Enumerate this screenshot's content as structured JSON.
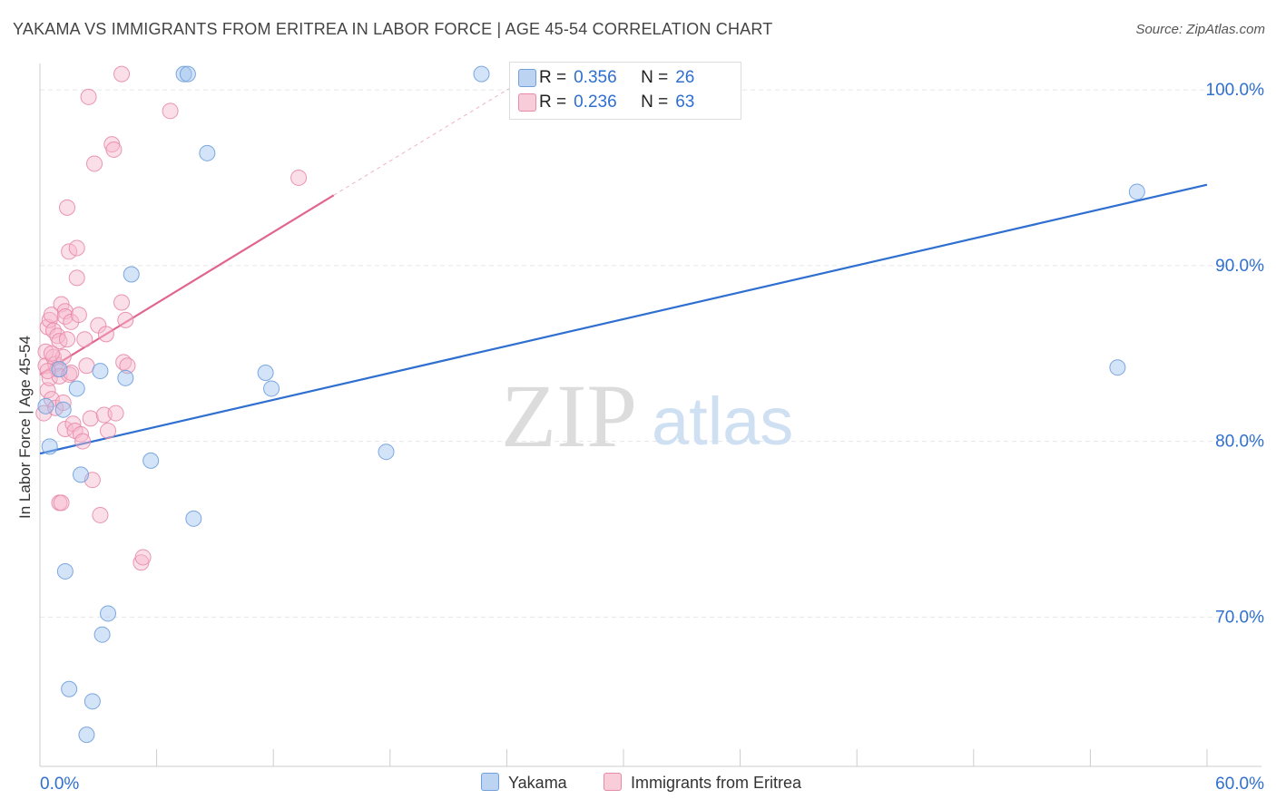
{
  "title": "YAKAMA VS IMMIGRANTS FROM ERITREA IN LABOR FORCE | AGE 45-54 CORRELATION CHART",
  "source": "Source: ZipAtlas.com",
  "watermark": {
    "zip": "ZIP",
    "atlas": "atlas"
  },
  "legend": {
    "yakama": {
      "r_label": "R =",
      "r_value": "0.356",
      "n_label": "N =",
      "n_value": "26"
    },
    "eritrea": {
      "r_label": "R =",
      "r_value": "0.236",
      "n_label": "N =",
      "n_value": "63"
    }
  },
  "chart_data": {
    "type": "scatter",
    "title": "YAKAMA VS IMMIGRANTS FROM ERITREA IN LABOR FORCE | AGE 45-54 CORRELATION CHART",
    "xlabel": "",
    "ylabel": "In Labor Force | Age 45-54",
    "xlim": [
      0,
      60
    ],
    "ylim": [
      61.5,
      101.5
    ],
    "x_tick_labels": [
      "0.0%",
      "60.0%"
    ],
    "y_ticks": [
      {
        "value": 70,
        "label": "70.0%"
      },
      {
        "value": 80,
        "label": "80.0%"
      },
      {
        "value": 90,
        "label": "90.0%"
      },
      {
        "value": 100,
        "label": "100.0%"
      }
    ],
    "grid": true,
    "series": [
      {
        "name": "Yakama",
        "color": "#9ec2ef",
        "edge": "#6f9fdc",
        "line_color": "#2e6fd0",
        "trend": {
          "x0": 0,
          "y0": 79.3,
          "x1": 60,
          "y1": 94.6
        },
        "points": [
          {
            "x": 0.3,
            "y": 82.0
          },
          {
            "x": 0.5,
            "y": 79.7
          },
          {
            "x": 1.0,
            "y": 84.1
          },
          {
            "x": 1.2,
            "y": 81.8
          },
          {
            "x": 1.9,
            "y": 83.0
          },
          {
            "x": 2.1,
            "y": 78.1
          },
          {
            "x": 1.3,
            "y": 72.6
          },
          {
            "x": 1.5,
            "y": 65.9
          },
          {
            "x": 2.4,
            "y": 63.3
          },
          {
            "x": 2.7,
            "y": 65.2
          },
          {
            "x": 3.2,
            "y": 69.0
          },
          {
            "x": 3.5,
            "y": 70.2
          },
          {
            "x": 3.1,
            "y": 84.0
          },
          {
            "x": 4.4,
            "y": 83.6
          },
          {
            "x": 4.7,
            "y": 89.5
          },
          {
            "x": 5.7,
            "y": 78.9
          },
          {
            "x": 7.4,
            "y": 100.9
          },
          {
            "x": 7.6,
            "y": 100.9
          },
          {
            "x": 7.9,
            "y": 75.6
          },
          {
            "x": 8.6,
            "y": 96.4
          },
          {
            "x": 11.6,
            "y": 83.9
          },
          {
            "x": 11.9,
            "y": 83.0
          },
          {
            "x": 17.8,
            "y": 79.4
          },
          {
            "x": 22.7,
            "y": 100.9
          },
          {
            "x": 55.4,
            "y": 84.2
          },
          {
            "x": 56.4,
            "y": 94.2
          }
        ]
      },
      {
        "name": "Immigrants from Eritrea",
        "color": "#f6b9cc",
        "edge": "#e88aa8",
        "line_color": "#e06690",
        "trend": {
          "x0": 0,
          "y0": 83.8,
          "x1": 15.1,
          "y1": 94.0
        },
        "trend_extension": {
          "x0": 15.1,
          "y0": 94.0,
          "x1": 25.5,
          "y1": 101.0
        },
        "points": [
          {
            "x": 0.2,
            "y": 81.6
          },
          {
            "x": 0.3,
            "y": 85.1
          },
          {
            "x": 0.3,
            "y": 84.3
          },
          {
            "x": 0.4,
            "y": 86.5
          },
          {
            "x": 0.4,
            "y": 82.9
          },
          {
            "x": 0.5,
            "y": 86.9
          },
          {
            "x": 0.5,
            "y": 83.6
          },
          {
            "x": 0.6,
            "y": 87.2
          },
          {
            "x": 0.6,
            "y": 82.4
          },
          {
            "x": 0.7,
            "y": 86.3
          },
          {
            "x": 0.7,
            "y": 84.8
          },
          {
            "x": 0.8,
            "y": 84.4
          },
          {
            "x": 0.8,
            "y": 81.9
          },
          {
            "x": 0.9,
            "y": 86.0
          },
          {
            "x": 0.9,
            "y": 84.1
          },
          {
            "x": 1.0,
            "y": 85.7
          },
          {
            "x": 1.0,
            "y": 83.7
          },
          {
            "x": 1.0,
            "y": 76.5
          },
          {
            "x": 1.1,
            "y": 76.5
          },
          {
            "x": 1.1,
            "y": 87.8
          },
          {
            "x": 1.2,
            "y": 84.8
          },
          {
            "x": 1.2,
            "y": 82.2
          },
          {
            "x": 1.3,
            "y": 87.4
          },
          {
            "x": 1.3,
            "y": 87.1
          },
          {
            "x": 1.3,
            "y": 80.7
          },
          {
            "x": 1.4,
            "y": 85.8
          },
          {
            "x": 1.5,
            "y": 83.8
          },
          {
            "x": 1.5,
            "y": 90.8
          },
          {
            "x": 1.6,
            "y": 83.9
          },
          {
            "x": 1.7,
            "y": 81.0
          },
          {
            "x": 1.8,
            "y": 80.6
          },
          {
            "x": 1.4,
            "y": 93.3
          },
          {
            "x": 1.6,
            "y": 86.8
          },
          {
            "x": 1.9,
            "y": 89.3
          },
          {
            "x": 1.9,
            "y": 91.0
          },
          {
            "x": 2.0,
            "y": 87.2
          },
          {
            "x": 2.1,
            "y": 80.4
          },
          {
            "x": 2.2,
            "y": 80.0
          },
          {
            "x": 2.3,
            "y": 85.8
          },
          {
            "x": 2.4,
            "y": 84.3
          },
          {
            "x": 2.5,
            "y": 99.6
          },
          {
            "x": 2.6,
            "y": 81.3
          },
          {
            "x": 2.7,
            "y": 77.8
          },
          {
            "x": 2.8,
            "y": 95.8
          },
          {
            "x": 3.0,
            "y": 86.6
          },
          {
            "x": 3.1,
            "y": 75.8
          },
          {
            "x": 3.3,
            "y": 81.5
          },
          {
            "x": 3.4,
            "y": 86.1
          },
          {
            "x": 3.5,
            "y": 80.6
          },
          {
            "x": 3.7,
            "y": 96.9
          },
          {
            "x": 3.8,
            "y": 96.6
          },
          {
            "x": 3.9,
            "y": 81.6
          },
          {
            "x": 4.2,
            "y": 87.9
          },
          {
            "x": 4.2,
            "y": 100.9
          },
          {
            "x": 4.3,
            "y": 84.5
          },
          {
            "x": 4.4,
            "y": 86.9
          },
          {
            "x": 4.5,
            "y": 84.3
          },
          {
            "x": 5.2,
            "y": 73.1
          },
          {
            "x": 5.3,
            "y": 73.4
          },
          {
            "x": 6.7,
            "y": 98.8
          },
          {
            "x": 13.3,
            "y": 95.0
          },
          {
            "x": 0.4,
            "y": 84.0
          },
          {
            "x": 0.6,
            "y": 85.0
          }
        ]
      }
    ]
  },
  "bottom_legend": {
    "yakama": "Yakama",
    "eritrea": "Immigrants from Eritrea"
  }
}
